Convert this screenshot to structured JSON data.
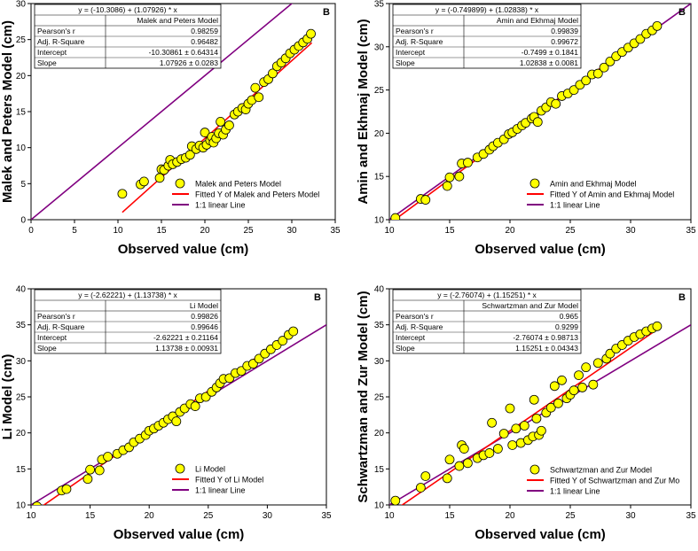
{
  "chart_data": [
    {
      "type": "scatter",
      "panel_letter": "B",
      "xlabel": "Observed value (cm)",
      "ylabel": "Malek and Peters Model (cm)",
      "xlim": [
        0,
        35
      ],
      "ylim": [
        0,
        30
      ],
      "xticks": [
        0,
        5,
        10,
        15,
        20,
        25,
        30,
        35
      ],
      "yticks": [
        0,
        5,
        10,
        15,
        20,
        25,
        30
      ],
      "stats": {
        "equation": "y = (-10.3086) + (1.07926) * x",
        "model": "Malek and Peters Model",
        "rows": [
          {
            "label": "Pearson's r",
            "value": "0.98259"
          },
          {
            "label": "Adj. R-Square",
            "value": "0.96482"
          },
          {
            "label": "Intercept",
            "value": "-10.30861 ± 0.64314"
          },
          {
            "label": "Slope",
            "value": "1.07926 ± 0.0283"
          }
        ]
      },
      "legend": [
        "Malek and Peters Model",
        "Fitted Y of Malek and Peters Model",
        "1:1 linear Line"
      ],
      "legend_position": "bottom-right",
      "fit": {
        "intercept": -10.30861,
        "slope": 1.07926,
        "x_range": [
          10.5,
          32.3
        ]
      },
      "identity_range": [
        0,
        35
      ],
      "series": [
        {
          "name": "Malek and Peters Model",
          "points": [
            [
              10.5,
              3.6
            ],
            [
              12.6,
              4.9
            ],
            [
              13.0,
              5.3
            ],
            [
              14.8,
              5.8
            ],
            [
              15.0,
              7.0
            ],
            [
              15.3,
              6.9
            ],
            [
              15.8,
              7.5
            ],
            [
              16.0,
              8.3
            ],
            [
              16.3,
              7.7
            ],
            [
              16.8,
              8.0
            ],
            [
              17.3,
              8.4
            ],
            [
              17.8,
              8.6
            ],
            [
              18.3,
              9.0
            ],
            [
              18.5,
              10.2
            ],
            [
              19.0,
              9.8
            ],
            [
              19.4,
              10.3
            ],
            [
              19.8,
              10.0
            ],
            [
              20.0,
              12.1
            ],
            [
              20.2,
              10.4
            ],
            [
              20.6,
              11.0
            ],
            [
              20.8,
              11.5
            ],
            [
              21.0,
              10.7
            ],
            [
              21.3,
              11.3
            ],
            [
              21.6,
              12.0
            ],
            [
              21.8,
              13.6
            ],
            [
              22.1,
              11.8
            ],
            [
              22.4,
              12.5
            ],
            [
              22.8,
              13.1
            ],
            [
              23.4,
              14.6
            ],
            [
              23.8,
              15.0
            ],
            [
              24.3,
              15.5
            ],
            [
              24.7,
              15.3
            ],
            [
              25.0,
              16.1
            ],
            [
              25.4,
              16.6
            ],
            [
              25.8,
              18.3
            ],
            [
              26.2,
              17.0
            ],
            [
              26.8,
              19.1
            ],
            [
              27.3,
              19.5
            ],
            [
              27.8,
              20.3
            ],
            [
              28.3,
              21.3
            ],
            [
              28.8,
              21.8
            ],
            [
              29.3,
              22.4
            ],
            [
              29.8,
              23.1
            ],
            [
              30.3,
              23.6
            ],
            [
              30.8,
              24.1
            ],
            [
              31.3,
              24.6
            ],
            [
              31.8,
              25.1
            ],
            [
              32.2,
              25.8
            ]
          ]
        }
      ]
    },
    {
      "type": "scatter",
      "panel_letter": "B",
      "xlabel": "Observed value (cm)",
      "ylabel": "Amin and Ekhmaj Model (cm)",
      "xlim": [
        10,
        35
      ],
      "ylim": [
        10,
        35
      ],
      "xticks": [
        10,
        15,
        20,
        25,
        30,
        35
      ],
      "yticks": [
        10,
        15,
        20,
        25,
        30,
        35
      ],
      "stats": {
        "equation": "y = (-0.749899) + (1.02838) * x",
        "model": "Amin and Ekhmaj Model",
        "rows": [
          {
            "label": "Pearson's r",
            "value": "0.99839"
          },
          {
            "label": "Adj. R-Square",
            "value": "0.99672"
          },
          {
            "label": "Intercept",
            "value": "-0.7499 ± 0.1841"
          },
          {
            "label": "Slope",
            "value": "1.02838 ± 0.0081"
          }
        ]
      },
      "legend": [
        "Amin and Ekhmaj Model",
        "Fitted Y of Amin and Ekhmaj Model",
        "1:1 linear Line"
      ],
      "legend_position": "bottom-right",
      "fit": {
        "intercept": -0.7499,
        "slope": 1.02838,
        "x_range": [
          10.0,
          32.3
        ]
      },
      "identity_range": [
        10,
        35
      ],
      "series": [
        {
          "name": "Amin and Ekhmaj Model",
          "points": [
            [
              10.5,
              10.2
            ],
            [
              12.6,
              12.4
            ],
            [
              13.0,
              12.3
            ],
            [
              14.8,
              13.9
            ],
            [
              15.0,
              14.9
            ],
            [
              15.8,
              15.0
            ],
            [
              16.0,
              16.5
            ],
            [
              16.5,
              16.6
            ],
            [
              17.3,
              17.2
            ],
            [
              17.8,
              17.6
            ],
            [
              18.3,
              18.1
            ],
            [
              18.6,
              18.5
            ],
            [
              19.0,
              18.9
            ],
            [
              19.5,
              19.3
            ],
            [
              19.9,
              19.9
            ],
            [
              20.2,
              20.1
            ],
            [
              20.6,
              20.5
            ],
            [
              21.0,
              20.9
            ],
            [
              21.3,
              21.2
            ],
            [
              21.8,
              21.7
            ],
            [
              22.0,
              21.9
            ],
            [
              22.3,
              21.3
            ],
            [
              22.6,
              22.6
            ],
            [
              23.0,
              23.0
            ],
            [
              23.4,
              23.6
            ],
            [
              23.8,
              23.4
            ],
            [
              24.3,
              24.3
            ],
            [
              24.8,
              24.6
            ],
            [
              25.3,
              25.0
            ],
            [
              25.8,
              25.6
            ],
            [
              26.3,
              26.1
            ],
            [
              26.8,
              26.8
            ],
            [
              27.3,
              26.9
            ],
            [
              27.8,
              27.6
            ],
            [
              28.3,
              28.3
            ],
            [
              28.8,
              28.9
            ],
            [
              29.3,
              29.4
            ],
            [
              29.8,
              29.9
            ],
            [
              30.3,
              30.4
            ],
            [
              30.8,
              30.9
            ],
            [
              31.3,
              31.5
            ],
            [
              31.8,
              31.9
            ],
            [
              32.2,
              32.4
            ]
          ]
        }
      ]
    },
    {
      "type": "scatter",
      "panel_letter": "B",
      "xlabel": "Observed value (cm)",
      "ylabel": "Li Model (cm)",
      "xlim": [
        10,
        35
      ],
      "ylim": [
        10,
        40
      ],
      "xticks": [
        10,
        15,
        20,
        25,
        30,
        35
      ],
      "yticks": [
        10,
        15,
        20,
        25,
        30,
        35,
        40
      ],
      "stats": {
        "equation": "y = (-2.62221) + (1.13738) * x",
        "model": "Li Model",
        "rows": [
          {
            "label": "Pearson's r",
            "value": "0.99826"
          },
          {
            "label": "Adj. R-Square",
            "value": "0.99646"
          },
          {
            "label": "Intercept",
            "value": "-2.62221 ± 0.21164"
          },
          {
            "label": "Slope",
            "value": "1.13738 ± 0.00931"
          }
        ]
      },
      "legend": [
        "Li Model",
        "Fitted Y of Li Model",
        "1:1 linear Line"
      ],
      "legend_position": "bottom-right",
      "fit": {
        "intercept": -2.62221,
        "slope": 1.13738,
        "x_range": [
          10.5,
          32.3
        ]
      },
      "identity_range": [
        10,
        35
      ],
      "series": [
        {
          "name": "Li Model",
          "points": [
            [
              10.5,
              9.8
            ],
            [
              12.6,
              12.0
            ],
            [
              13.0,
              12.2
            ],
            [
              14.8,
              13.6
            ],
            [
              15.0,
              14.9
            ],
            [
              15.8,
              14.8
            ],
            [
              16.0,
              16.3
            ],
            [
              16.5,
              16.7
            ],
            [
              17.3,
              17.1
            ],
            [
              17.8,
              17.6
            ],
            [
              18.3,
              18.0
            ],
            [
              18.7,
              18.7
            ],
            [
              19.2,
              19.2
            ],
            [
              19.7,
              19.7
            ],
            [
              20.0,
              20.3
            ],
            [
              20.4,
              20.6
            ],
            [
              20.8,
              21.0
            ],
            [
              21.2,
              21.4
            ],
            [
              21.6,
              21.9
            ],
            [
              22.0,
              22.3
            ],
            [
              22.3,
              21.6
            ],
            [
              22.6,
              22.9
            ],
            [
              23.0,
              23.4
            ],
            [
              23.5,
              24.0
            ],
            [
              23.9,
              23.7
            ],
            [
              24.3,
              24.8
            ],
            [
              24.8,
              25.0
            ],
            [
              25.3,
              25.7
            ],
            [
              25.7,
              26.3
            ],
            [
              26.0,
              26.9
            ],
            [
              26.3,
              27.5
            ],
            [
              26.8,
              27.6
            ],
            [
              27.3,
              28.3
            ],
            [
              27.8,
              28.6
            ],
            [
              28.3,
              29.3
            ],
            [
              28.8,
              29.6
            ],
            [
              29.3,
              30.3
            ],
            [
              29.8,
              31.0
            ],
            [
              30.3,
              31.6
            ],
            [
              30.8,
              32.2
            ],
            [
              31.3,
              32.8
            ],
            [
              31.8,
              33.6
            ],
            [
              32.2,
              34.1
            ]
          ]
        }
      ]
    },
    {
      "type": "scatter",
      "panel_letter": "B",
      "xlabel": "Observed value (cm)",
      "ylabel": "Schwartzman and Zur Model (cm)",
      "xlim": [
        10,
        35
      ],
      "ylim": [
        10,
        40
      ],
      "xticks": [
        10,
        15,
        20,
        25,
        30,
        35
      ],
      "yticks": [
        10,
        15,
        20,
        25,
        30,
        35,
        40
      ],
      "stats": {
        "equation": "y = (-2.76074) + (1.15251) * x",
        "model": "Schwartzman and Zur Model",
        "rows": [
          {
            "label": "Pearson's r",
            "value": "0.965"
          },
          {
            "label": "Adj. R-Square",
            "value": "0.9299"
          },
          {
            "label": "Intercept",
            "value": "-2.76074 ± 0.98713"
          },
          {
            "label": "Slope",
            "value": "1.15251 ± 0.04343"
          }
        ]
      },
      "legend": [
        "Schwartzman and Zur Model",
        "Fitted Y of Schwartzman and Zur Mo",
        "1:1 linear Line"
      ],
      "legend_position": "bottom-right",
      "fit": {
        "intercept": -2.76074,
        "slope": 1.15251,
        "x_range": [
          10.5,
          32.3
        ]
      },
      "identity_range": [
        10,
        35
      ],
      "series": [
        {
          "name": "Schwartzman and Zur Model",
          "points": [
            [
              10.5,
              10.6
            ],
            [
              12.6,
              12.4
            ],
            [
              13.0,
              14.0
            ],
            [
              14.8,
              13.7
            ],
            [
              15.0,
              16.3
            ],
            [
              15.8,
              15.4
            ],
            [
              16.0,
              18.3
            ],
            [
              16.2,
              17.8
            ],
            [
              16.5,
              15.8
            ],
            [
              17.3,
              16.5
            ],
            [
              17.8,
              16.9
            ],
            [
              18.3,
              17.2
            ],
            [
              18.5,
              21.4
            ],
            [
              19.0,
              17.8
            ],
            [
              19.5,
              19.9
            ],
            [
              20.0,
              23.4
            ],
            [
              20.2,
              18.3
            ],
            [
              20.5,
              20.6
            ],
            [
              20.9,
              18.6
            ],
            [
              21.2,
              21.0
            ],
            [
              21.5,
              19.0
            ],
            [
              21.9,
              19.5
            ],
            [
              22.0,
              24.6
            ],
            [
              22.2,
              22.0
            ],
            [
              22.4,
              19.7
            ],
            [
              22.6,
              20.3
            ],
            [
              23.0,
              22.8
            ],
            [
              23.4,
              23.5
            ],
            [
              23.7,
              26.5
            ],
            [
              24.0,
              24.1
            ],
            [
              24.3,
              27.3
            ],
            [
              24.7,
              24.8
            ],
            [
              25.0,
              25.3
            ],
            [
              25.3,
              25.9
            ],
            [
              25.7,
              28.0
            ],
            [
              26.0,
              26.3
            ],
            [
              26.3,
              29.1
            ],
            [
              26.9,
              26.7
            ],
            [
              27.3,
              29.7
            ],
            [
              28.0,
              30.3
            ],
            [
              28.3,
              31.0
            ],
            [
              28.8,
              31.7
            ],
            [
              29.3,
              32.2
            ],
            [
              29.8,
              32.8
            ],
            [
              30.3,
              33.3
            ],
            [
              30.8,
              33.7
            ],
            [
              31.3,
              34.1
            ],
            [
              31.8,
              34.5
            ],
            [
              32.2,
              34.8
            ]
          ]
        }
      ]
    }
  ]
}
